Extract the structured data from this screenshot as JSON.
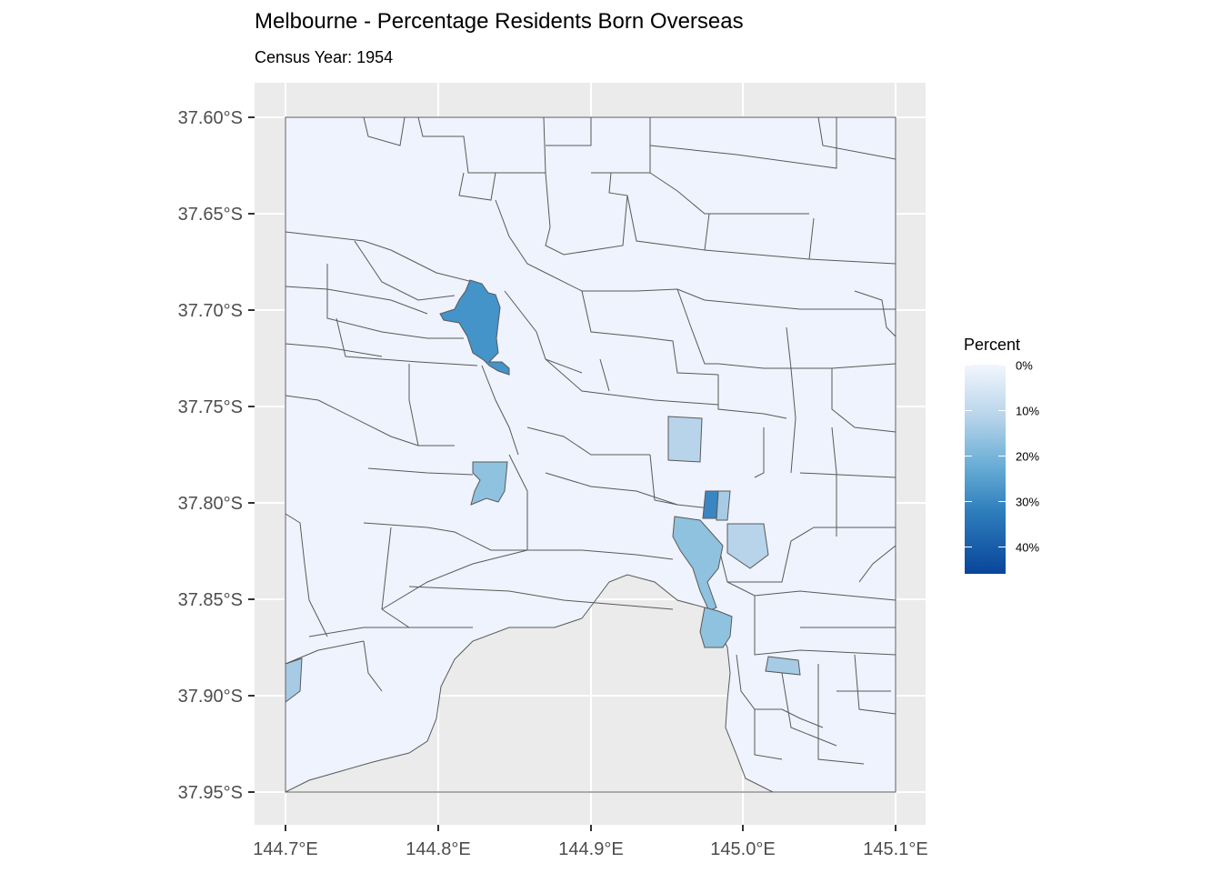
{
  "title": "Melbourne - Percentage Residents Born Overseas",
  "subtitle": "Census Year: 1954",
  "axes": {
    "x_ticks": [
      "144.7°E",
      "144.8°E",
      "144.9°E",
      "145.0°E",
      "145.1°E"
    ],
    "y_ticks": [
      "37.60°S",
      "37.65°S",
      "37.70°S",
      "37.75°S",
      "37.80°S",
      "37.85°S",
      "37.90°S",
      "37.95°S"
    ]
  },
  "legend": {
    "title": "Percent",
    "labels": [
      "0%",
      "10%",
      "20%",
      "30%",
      "40%"
    ]
  },
  "colors": {
    "panel": "#ebebeb",
    "grid": "#ffffff",
    "land_low": "#eef3fd",
    "border": "#595959",
    "pct_10": "#b7d4ea",
    "pct_20": "#8fc2de",
    "pct_30": "#4493c9",
    "pct_40": "#08459a"
  }
}
